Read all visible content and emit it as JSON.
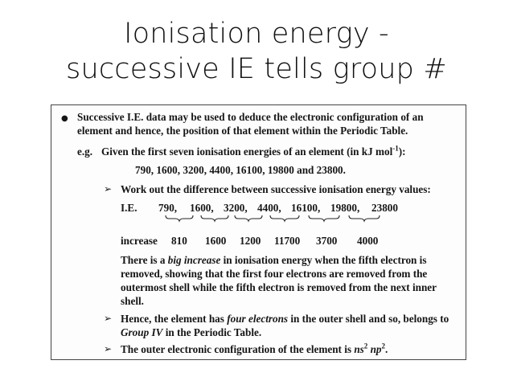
{
  "title": {
    "line1": "Ionisation energy -",
    "line2": "successive IE tells group #"
  },
  "panel": {
    "bullet_line1": "Successive I.E. data may be used to deduce the electronic configuration of an",
    "bullet_line2": "element and hence, the position of that element within the Periodic Table.",
    "eg_prefix": "e.g.",
    "eg_text": "Given the first seven ionisation energies of an element (in kJ mol",
    "eg_sup": "-1",
    "eg_suffix": "):",
    "ie_values_line": "790,  1600,  3200,  4400,  16100,  19800  and  23800.",
    "point1": "Work out the difference between successive ionisation energy values:",
    "ie_label": "I.E.",
    "ie_values": [
      "790,",
      "1600,",
      "3200,",
      "4400,",
      "16100,",
      "19800,",
      "23800"
    ],
    "increase_label": "increase",
    "increase_values": [
      "810",
      "1600",
      "1200",
      "11700",
      "3700",
      "4000"
    ],
    "explain_line1_a": "There is a ",
    "explain_line1_b": "big increase",
    "explain_line1_c": " in ionisation energy when the fifth electron is",
    "explain_line2": "removed, showing that the first four electrons are removed from the",
    "explain_line3": "outermost shell while the fifth electron is removed from the next inner",
    "explain_line4": "shell.",
    "point2_a": "Hence, the element has ",
    "point2_b": "four electrons",
    "point2_c": " in the outer shell and so, belongs to",
    "point2_line2_a": "Group IV",
    "point2_line2_b": " in the Periodic Table.",
    "point3_a": "The outer electronic configuration of the element is ",
    "point3_ns": "ns",
    "point3_ns_sup": "2",
    "point3_np": " np",
    "point3_np_sup": "2",
    "point3_end": "."
  }
}
